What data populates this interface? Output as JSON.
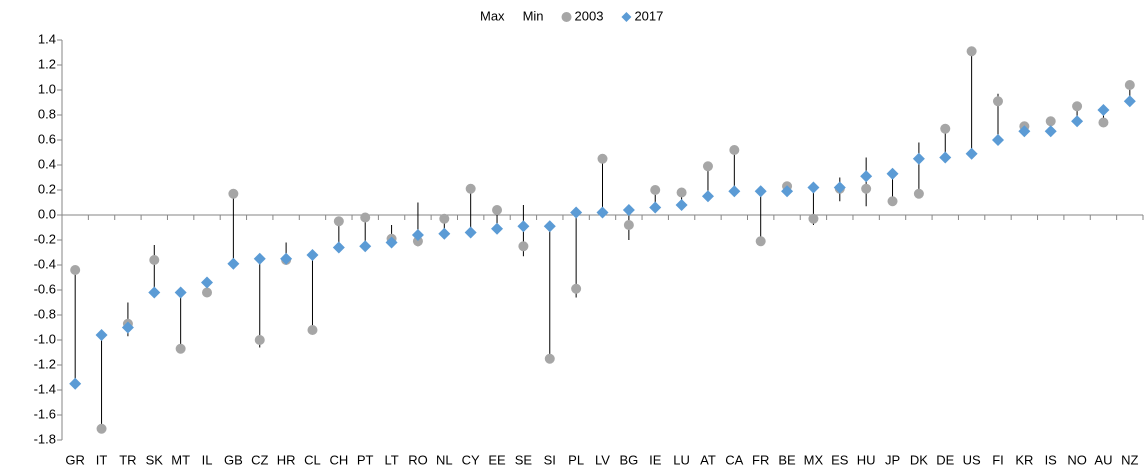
{
  "chart_data": {
    "type": "dot_plot",
    "categories": [
      "GR",
      "IT",
      "TR",
      "SK",
      "MT",
      "IL",
      "GB",
      "CZ",
      "HR",
      "CL",
      "CH",
      "PT",
      "LT",
      "RO",
      "NL",
      "CY",
      "EE",
      "SE",
      "SI",
      "PL",
      "LV",
      "BG",
      "IE",
      "LU",
      "AT",
      "CA",
      "FR",
      "BE",
      "MX",
      "ES",
      "HU",
      "JP",
      "DK",
      "DE",
      "US",
      "FI",
      "KR",
      "IS",
      "NO",
      "AU",
      "NZ"
    ],
    "series": [
      {
        "name": "Max",
        "color": "#000000",
        "marker": "none",
        "values": [
          -0.44,
          -0.96,
          -0.7,
          -0.24,
          -0.62,
          -0.54,
          0.17,
          -0.35,
          -0.22,
          -0.32,
          -0.05,
          -0.02,
          -0.08,
          0.1,
          -0.03,
          0.21,
          0.04,
          0.08,
          -0.09,
          0.02,
          0.45,
          0.04,
          0.2,
          0.18,
          0.39,
          0.52,
          0.19,
          0.23,
          0.22,
          0.3,
          0.46,
          0.33,
          0.58,
          0.69,
          1.31,
          0.97,
          0.71,
          0.75,
          0.87,
          0.84,
          1.04
        ]
      },
      {
        "name": "Min",
        "color": "#000000",
        "marker": "none",
        "values": [
          -1.35,
          -1.71,
          -0.97,
          -0.62,
          -1.07,
          -0.62,
          -0.39,
          -1.06,
          -0.36,
          -0.92,
          -0.26,
          -0.25,
          -0.22,
          -0.25,
          -0.15,
          -0.14,
          -0.14,
          -0.33,
          -1.15,
          -0.66,
          0.02,
          -0.2,
          0.06,
          0.08,
          0.15,
          0.19,
          -0.21,
          0.19,
          -0.08,
          0.11,
          0.07,
          0.11,
          0.17,
          0.46,
          0.49,
          0.6,
          0.67,
          0.67,
          0.75,
          0.74,
          0.91
        ]
      },
      {
        "name": "2003",
        "color": "#a6a6a6",
        "marker": "circle",
        "values": [
          -0.44,
          -1.71,
          -0.87,
          -0.36,
          -1.07,
          -0.62,
          0.17,
          -1.0,
          -0.36,
          -0.92,
          -0.05,
          -0.02,
          -0.19,
          -0.21,
          -0.03,
          0.21,
          0.04,
          -0.25,
          -1.15,
          -0.59,
          0.45,
          -0.08,
          0.2,
          0.18,
          0.39,
          0.52,
          -0.21,
          0.23,
          -0.03,
          0.21,
          0.21,
          0.11,
          0.17,
          0.69,
          1.31,
          0.91,
          0.71,
          0.75,
          0.87,
          0.74,
          1.04
        ]
      },
      {
        "name": "2017",
        "color": "#5b9bd5",
        "marker": "diamond",
        "values": [
          -1.35,
          -0.96,
          -0.9,
          -0.62,
          -0.62,
          -0.54,
          -0.39,
          -0.35,
          -0.35,
          -0.32,
          -0.26,
          -0.25,
          -0.22,
          -0.16,
          -0.15,
          -0.14,
          -0.11,
          -0.09,
          -0.09,
          0.02,
          0.02,
          0.04,
          0.06,
          0.08,
          0.15,
          0.19,
          0.19,
          0.19,
          0.22,
          0.22,
          0.31,
          0.33,
          0.45,
          0.46,
          0.49,
          0.6,
          0.67,
          0.67,
          0.75,
          0.84,
          0.91
        ]
      }
    ],
    "ylim": [
      -1.8,
      1.4
    ],
    "yticks": [
      -1.8,
      -1.6,
      -1.4,
      -1.2,
      {
        "value": -1,
        "label": "-1.0"
      },
      -0.8,
      -0.6,
      -0.4,
      -0.2,
      {
        "value": 0,
        "label": "0.0"
      },
      0.2,
      0.4,
      0.6,
      0.8,
      {
        "value": 1,
        "label": "1.0"
      },
      1.2,
      1.4
    ],
    "grid": false,
    "legend": "top"
  }
}
